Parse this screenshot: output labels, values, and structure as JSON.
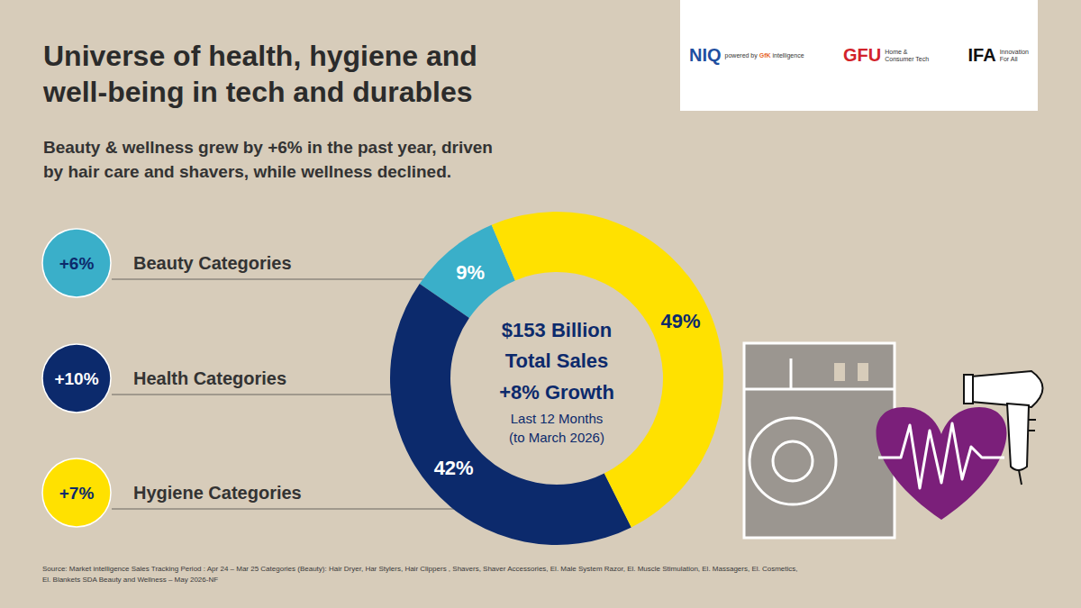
{
  "chart_data": {
    "type": "donut",
    "title": [
      "Universe of health, hygiene and",
      "well-being in tech and durables"
    ],
    "subtitle": [
      "Beauty & wellness grew by +6% in the past year, driven",
      "by hair care and shavers, while wellness declined."
    ],
    "categories": [
      "Beauty Categories",
      "Health Categories",
      "Hygiene Categories"
    ],
    "values": [
      9,
      42,
      49
    ],
    "value_labels": [
      "9%",
      "42%",
      "49%"
    ],
    "colors": [
      "#3aafc9",
      "#0c2a6c",
      "#ffe100"
    ],
    "data_labels": true,
    "growth_labels": [
      "+6%",
      "+10%",
      "+7%"
    ],
    "center_text": {
      "total": "$153 Billion",
      "total_label": "Total Sales",
      "growth": "+8% Growth",
      "period": [
        "Last 12 Months",
        "(to March 2026)"
      ]
    },
    "logos": {
      "niq": "NIQ",
      "niq_sub": [
        "powered by",
        "GfK",
        "intelligence"
      ],
      "gfu": "GFU",
      "gfu_sub": [
        "Home &",
        "Consumer Tech"
      ],
      "ifa": "IFA",
      "ifa_sub": [
        "Innovation",
        "For All"
      ]
    },
    "source": [
      "Source: Market intelligence Sales Tracking Period : Apr 24 – Mar 25 Categories (Beauty): Hair Dryer, Har Stylers, Hair Clippers , Shavers, Shaver Accessories, El. Male System Razor, El. Muscle Stimulation, El. Massagers, El. Cosmetics,",
      "El. Blankets SDA Beauty and Wellness – May 2026-NF"
    ]
  }
}
